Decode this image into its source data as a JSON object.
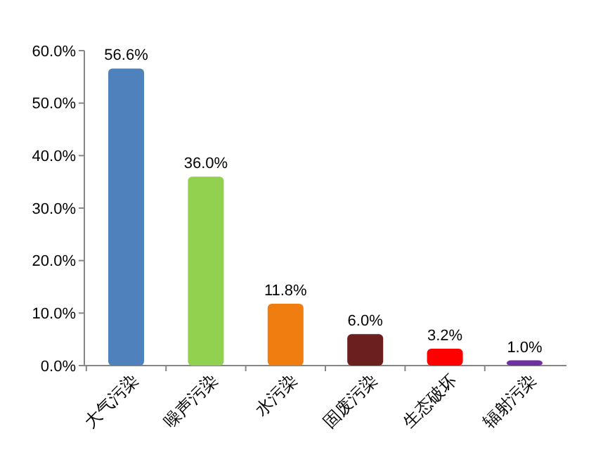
{
  "chart_data": {
    "type": "bar",
    "categories": [
      "大气污染",
      "噪声污染",
      "水污染",
      "固废污染",
      "生态破坏",
      "辐射污染"
    ],
    "values": [
      56.6,
      36.0,
      11.8,
      6.0,
      3.2,
      1.0
    ],
    "colors": [
      "#4f81bd",
      "#92d050",
      "#f07d10",
      "#6b1f1f",
      "#ff0000",
      "#7030a0"
    ],
    "value_labels": [
      "56.6%",
      "36.0%",
      "11.8%",
      "6.0%",
      "3.2%",
      "1.0%"
    ],
    "ylim": [
      0,
      60
    ],
    "yticks": [
      {
        "value": 0,
        "label": "0.0%"
      },
      {
        "value": 10,
        "label": "10.0%"
      },
      {
        "value": 20,
        "label": "20.0%"
      },
      {
        "value": 30,
        "label": "30.0%"
      },
      {
        "value": 40,
        "label": "40.0%"
      },
      {
        "value": 50,
        "label": "50.0%"
      },
      {
        "value": 60,
        "label": "60.0%"
      }
    ],
    "grid": false
  }
}
